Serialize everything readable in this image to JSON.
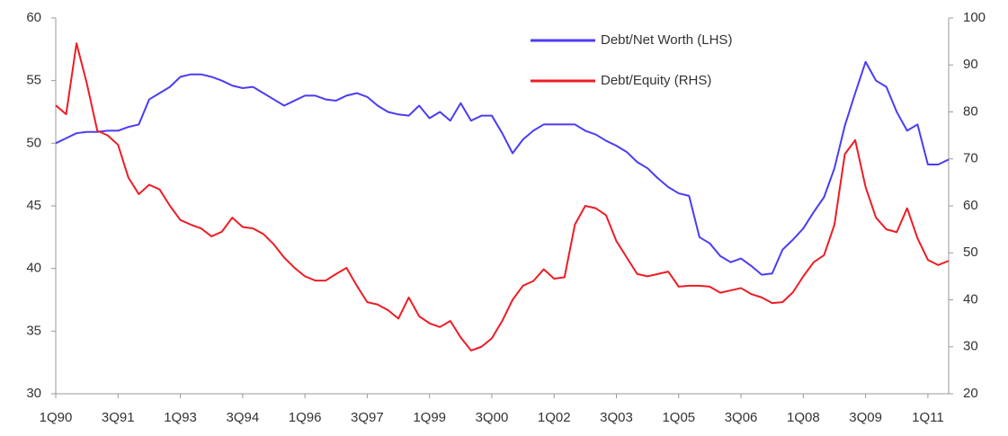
{
  "chart_data": {
    "type": "line",
    "categories": [
      "1Q90",
      null,
      null,
      null,
      null,
      null,
      "3Q91",
      null,
      null,
      null,
      null,
      null,
      "1Q93",
      null,
      null,
      null,
      null,
      null,
      "3Q94",
      null,
      null,
      null,
      null,
      null,
      "1Q96",
      null,
      null,
      null,
      null,
      null,
      "3Q97",
      null,
      null,
      null,
      null,
      null,
      "1Q99",
      null,
      null,
      null,
      null,
      null,
      "3Q00",
      null,
      null,
      null,
      null,
      null,
      "1Q02",
      null,
      null,
      null,
      null,
      null,
      "3Q03",
      null,
      null,
      null,
      null,
      null,
      "1Q05",
      null,
      null,
      null,
      null,
      null,
      "3Q06",
      null,
      null,
      null,
      null,
      null,
      "1Q08",
      null,
      null,
      null,
      null,
      null,
      "3Q09",
      null,
      null,
      null,
      null,
      null,
      "1Q11",
      null,
      null
    ],
    "series": [
      {
        "name": "Debt/Net Worth (LHS)",
        "color": "#4b3cf5",
        "axis": "y",
        "values": [
          50,
          50.4,
          50.8,
          50.9,
          50.9,
          51,
          51,
          51.3,
          51.5,
          53.5,
          54,
          54.5,
          55.3,
          55.5,
          55.5,
          55.3,
          55,
          54.6,
          54.4,
          54.5,
          54,
          53.5,
          53,
          53.4,
          53.8,
          53.8,
          53.5,
          53.4,
          53.8,
          54,
          53.7,
          53,
          52.5,
          52.3,
          52.2,
          53,
          52,
          52.5,
          51.8,
          53.2,
          51.8,
          52.2,
          52.2,
          50.8,
          49.2,
          50.3,
          51,
          51.5,
          51.5,
          51.5,
          51.5,
          51,
          50.7,
          50.2,
          49.8,
          49.3,
          48.5,
          48,
          47.2,
          46.5,
          46,
          45.8,
          42.5,
          42,
          41,
          40.5,
          40.8,
          40.2,
          39.5,
          39.6,
          41.5,
          42.3,
          43.2,
          44.5,
          45.7,
          48,
          51.4,
          54,
          56.5,
          55,
          54.5,
          52.5,
          51,
          51.5,
          48.3,
          48.3,
          48.7
        ]
      },
      {
        "name": "Debt/Equity (RHS)",
        "color": "#ee1c24",
        "axis": "y2",
        "values": [
          81.4,
          79.5,
          94.6,
          86,
          76,
          75,
          73,
          66,
          62.5,
          64.5,
          63.5,
          60,
          57,
          56,
          55.2,
          53.5,
          54.5,
          57.5,
          55.5,
          55.2,
          54,
          51.8,
          49,
          46.8,
          45,
          44.1,
          44.1,
          45.5,
          46.8,
          43,
          39.5,
          39,
          37.8,
          36,
          40.5,
          36.5,
          35,
          34.2,
          35.5,
          32,
          29.2,
          30,
          31.8,
          35.5,
          40,
          43,
          44,
          46.5,
          44.5,
          44.8,
          56,
          60,
          59.5,
          58,
          52.5,
          49,
          45.5,
          45,
          45.5,
          46,
          42.8,
          43,
          43,
          42.8,
          41.5,
          42,
          42.5,
          41.2,
          40.5,
          39.3,
          39.5,
          41.6,
          45,
          48,
          49.5,
          56,
          71,
          74,
          64,
          57.5,
          55,
          54.4,
          59.5,
          53.1,
          48.5,
          47.4,
          48.3
        ]
      }
    ],
    "ylim": [
      30,
      60
    ],
    "yticks": [
      30,
      35,
      40,
      45,
      50,
      55,
      60
    ],
    "y2lim": [
      20,
      100
    ],
    "y2ticks": [
      20,
      30,
      40,
      50,
      60,
      70,
      80,
      90,
      100
    ],
    "legend": "top-right",
    "grid": false
  }
}
